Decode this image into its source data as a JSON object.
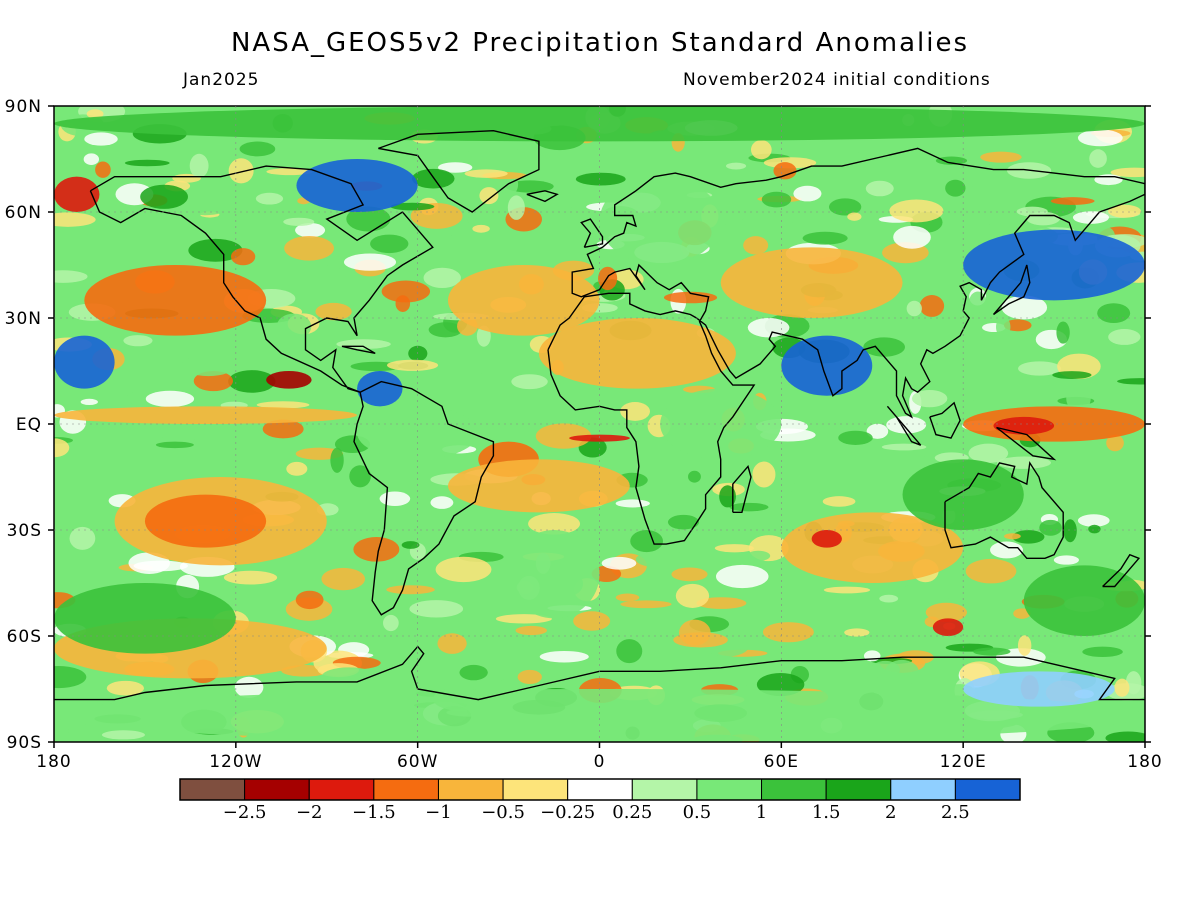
{
  "title": "NASA_GEOS5v2 Precipitation Standard Anomalies",
  "valid_time": "Jan2025",
  "init_conditions": "November2024 initial conditions",
  "map": {
    "lat_ticks": [
      {
        "value": 90,
        "label": "90N"
      },
      {
        "value": 60,
        "label": "60N"
      },
      {
        "value": 30,
        "label": "30N"
      },
      {
        "value": 0,
        "label": "EQ"
      },
      {
        "value": -30,
        "label": "30S"
      },
      {
        "value": -60,
        "label": "60S"
      },
      {
        "value": -90,
        "label": "90S"
      }
    ],
    "lon_ticks": [
      {
        "value": -180,
        "label": "180"
      },
      {
        "value": -120,
        "label": "120W"
      },
      {
        "value": -60,
        "label": "60W"
      },
      {
        "value": 0,
        "label": "0"
      },
      {
        "value": 60,
        "label": "60E"
      },
      {
        "value": 120,
        "label": "120E"
      },
      {
        "value": 180,
        "label": "180"
      }
    ],
    "lat_range": [
      -90,
      90
    ],
    "lon_range": [
      -180,
      180
    ]
  },
  "colorbar": {
    "colors": [
      "#7f4f3f",
      "#a50000",
      "#dd1a0d",
      "#f56c10",
      "#f8b53b",
      "#fde47a",
      "#ffffff",
      "#b4f5a8",
      "#78e878",
      "#3bc23b",
      "#1aa51a",
      "#8fcfff",
      "#1763d6"
    ],
    "labels": [
      "−2.5",
      "−2",
      "−1.5",
      "−1",
      "−0.5",
      "−0.25",
      "0.25",
      "0.5",
      "1",
      "1.5",
      "2",
      "2.5"
    ]
  },
  "anomaly_regions": [
    {
      "lon": [
        -180,
        -80
      ],
      "lat": [
        0,
        5
      ],
      "level": 4
    },
    {
      "lon": [
        -170,
        -110
      ],
      "lat": [
        25,
        45
      ],
      "level": 3
    },
    {
      "lon": [
        -160,
        -90
      ],
      "lat": [
        -40,
        -15
      ],
      "level": 4
    },
    {
      "lon": [
        -150,
        -110
      ],
      "lat": [
        -35,
        -20
      ],
      "level": 3
    },
    {
      "lon": [
        -180,
        -165
      ],
      "lat": [
        60,
        70
      ],
      "level": 2
    },
    {
      "lon": [
        -110,
        -95
      ],
      "lat": [
        10,
        15
      ],
      "level": 1
    },
    {
      "lon": [
        -100,
        -60
      ],
      "lat": [
        60,
        75
      ],
      "level": 12
    },
    {
      "lon": [
        -180,
        -160
      ],
      "lat": [
        10,
        25
      ],
      "level": 12
    },
    {
      "lon": [
        -80,
        -65
      ],
      "lat": [
        5,
        15
      ],
      "level": 12
    },
    {
      "lon": [
        -50,
        0
      ],
      "lat": [
        25,
        45
      ],
      "level": 4
    },
    {
      "lon": [
        -20,
        45
      ],
      "lat": [
        10,
        30
      ],
      "level": 4
    },
    {
      "lon": [
        -10,
        10
      ],
      "lat": [
        -5,
        -3
      ],
      "level": 2
    },
    {
      "lon": [
        -40,
        -20
      ],
      "lat": [
        -15,
        -5
      ],
      "level": 3
    },
    {
      "lon": [
        -50,
        10
      ],
      "lat": [
        -25,
        -10
      ],
      "level": 4
    },
    {
      "lon": [
        40,
        100
      ],
      "lat": [
        30,
        50
      ],
      "level": 4
    },
    {
      "lon": [
        60,
        90
      ],
      "lat": [
        8,
        25
      ],
      "level": 12
    },
    {
      "lon": [
        120,
        180
      ],
      "lat": [
        -5,
        5
      ],
      "level": 3
    },
    {
      "lon": [
        130,
        150
      ],
      "lat": [
        -3,
        2
      ],
      "level": 2
    },
    {
      "lon": [
        120,
        180
      ],
      "lat": [
        35,
        55
      ],
      "level": 12
    },
    {
      "lon": [
        60,
        120
      ],
      "lat": [
        -45,
        -25
      ],
      "level": 4
    },
    {
      "lon": [
        70,
        80
      ],
      "lat": [
        -35,
        -30
      ],
      "level": 2
    },
    {
      "lon": [
        110,
        120
      ],
      "lat": [
        -60,
        -55
      ],
      "level": 2
    },
    {
      "lon": [
        -180,
        -90
      ],
      "lat": [
        -72,
        -55
      ],
      "level": 4
    },
    {
      "lon": [
        -180,
        180
      ],
      "lat": [
        80,
        90
      ],
      "level": 9
    },
    {
      "lon": [
        -180,
        180
      ],
      "lat": [
        -90,
        -75
      ],
      "level": 8
    },
    {
      "lon": [
        20,
        60
      ],
      "lat": [
        -10,
        10
      ],
      "level": 8
    },
    {
      "lon": [
        100,
        140
      ],
      "lat": [
        -30,
        -10
      ],
      "level": 9
    },
    {
      "lon": [
        -180,
        -120
      ],
      "lat": [
        -65,
        -45
      ],
      "level": 9
    },
    {
      "lon": [
        -80,
        -40
      ],
      "lat": [
        -10,
        5
      ],
      "level": 8
    },
    {
      "lon": [
        -30,
        0
      ],
      "lat": [
        -55,
        -30
      ],
      "level": 8
    },
    {
      "lon": [
        0,
        40
      ],
      "lat": [
        45,
        70
      ],
      "level": 8
    },
    {
      "lon": [
        140,
        180
      ],
      "lat": [
        -60,
        -40
      ],
      "level": 9
    },
    {
      "lon": [
        120,
        170
      ],
      "lat": [
        -80,
        -70
      ],
      "level": 11
    }
  ]
}
